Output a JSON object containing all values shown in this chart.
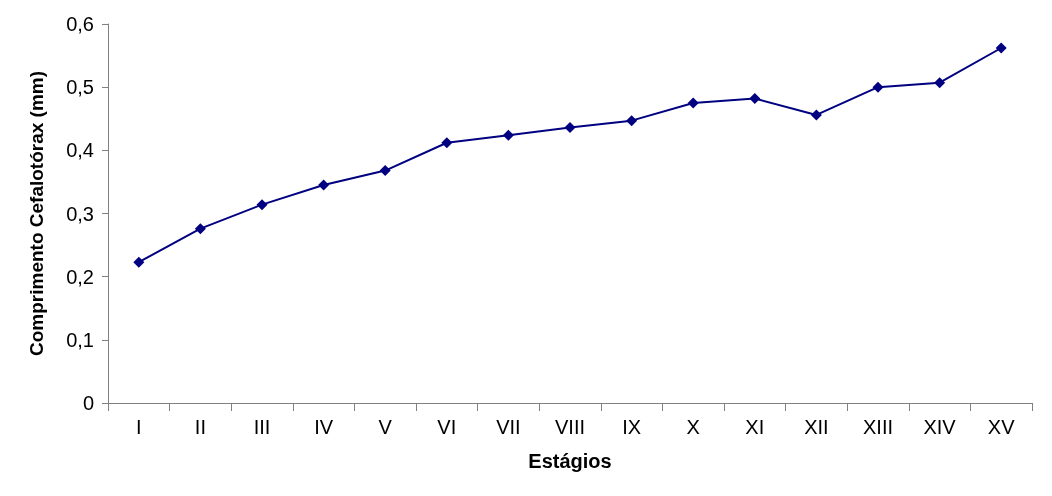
{
  "chart_data": {
    "type": "line",
    "xlabel": "Estágios",
    "ylabel": "Comprimento Cefalotórax (mm)",
    "categories": [
      "I",
      "II",
      "III",
      "IV",
      "V",
      "VI",
      "VII",
      "VIII",
      "IX",
      "X",
      "XI",
      "XII",
      "XIII",
      "XIV",
      "XV"
    ],
    "series": [
      {
        "color": "#000080",
        "values": [
          0.223,
          0.276,
          0.314,
          0.345,
          0.368,
          0.412,
          0.424,
          0.436,
          0.447,
          0.475,
          0.482,
          0.456,
          0.5,
          0.507,
          0.562
        ]
      }
    ],
    "ylim": [
      0,
      0.6
    ],
    "yticks": [
      0,
      {
        "value": 0.1,
        "label": "0,1"
      },
      {
        "value": 0.2,
        "label": "0,2"
      },
      {
        "value": 0.3,
        "label": "0,3"
      },
      {
        "value": 0.4,
        "label": "0,4"
      },
      {
        "value": 0.5,
        "label": "0,5"
      },
      {
        "value": 0.6,
        "label": "0,6"
      }
    ],
    "grid": false,
    "marker": "diamond",
    "line_style": "solid"
  }
}
